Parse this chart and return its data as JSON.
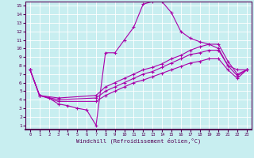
{
  "xlabel": "Windchill (Refroidissement éolien,°C)",
  "xlim": [
    -0.5,
    23.5
  ],
  "ylim": [
    0.5,
    15.5
  ],
  "xticks": [
    0,
    1,
    2,
    3,
    4,
    5,
    6,
    7,
    8,
    9,
    10,
    11,
    12,
    13,
    14,
    15,
    16,
    17,
    18,
    19,
    20,
    21,
    22,
    23
  ],
  "yticks": [
    1,
    2,
    3,
    4,
    5,
    6,
    7,
    8,
    9,
    10,
    11,
    12,
    13,
    14,
    15
  ],
  "line_color": "#aa00aa",
  "bg_color": "#c8eef0",
  "grid_color": "#ffffff",
  "lines": [
    {
      "x": [
        0,
        1,
        2,
        3,
        4,
        5,
        6,
        7,
        8,
        9,
        10,
        11,
        12,
        13,
        14,
        15,
        16,
        17,
        18,
        19,
        20,
        21,
        22,
        23
      ],
      "y": [
        7.5,
        4.5,
        4.2,
        3.5,
        3.3,
        3.0,
        2.8,
        1.0,
        9.5,
        9.5,
        11.0,
        12.5,
        15.2,
        15.5,
        15.5,
        14.2,
        12.0,
        11.2,
        10.8,
        10.5,
        10.0,
        8.0,
        7.5,
        7.5
      ]
    },
    {
      "x": [
        0,
        1,
        3,
        7,
        8,
        9,
        10,
        11,
        12,
        13,
        14,
        15,
        16,
        17,
        18,
        19,
        20,
        21,
        22,
        23
      ],
      "y": [
        7.5,
        4.5,
        4.2,
        4.5,
        5.5,
        6.0,
        6.5,
        7.0,
        7.5,
        7.8,
        8.2,
        8.8,
        9.2,
        9.8,
        10.2,
        10.5,
        10.5,
        8.5,
        7.0,
        7.5
      ]
    },
    {
      "x": [
        0,
        1,
        3,
        7,
        8,
        9,
        10,
        11,
        12,
        13,
        14,
        15,
        16,
        17,
        18,
        19,
        20,
        21,
        22,
        23
      ],
      "y": [
        7.5,
        4.5,
        4.0,
        4.2,
        5.0,
        5.5,
        6.0,
        6.5,
        7.0,
        7.3,
        7.8,
        8.3,
        8.8,
        9.3,
        9.5,
        9.8,
        9.8,
        8.0,
        6.8,
        7.5
      ]
    },
    {
      "x": [
        0,
        1,
        3,
        7,
        8,
        9,
        10,
        11,
        12,
        13,
        14,
        15,
        16,
        17,
        18,
        19,
        20,
        21,
        22,
        23
      ],
      "y": [
        7.5,
        4.5,
        3.8,
        3.8,
        4.5,
        5.0,
        5.5,
        6.0,
        6.3,
        6.7,
        7.1,
        7.5,
        7.9,
        8.3,
        8.5,
        8.8,
        8.8,
        7.5,
        6.5,
        7.5
      ]
    }
  ]
}
